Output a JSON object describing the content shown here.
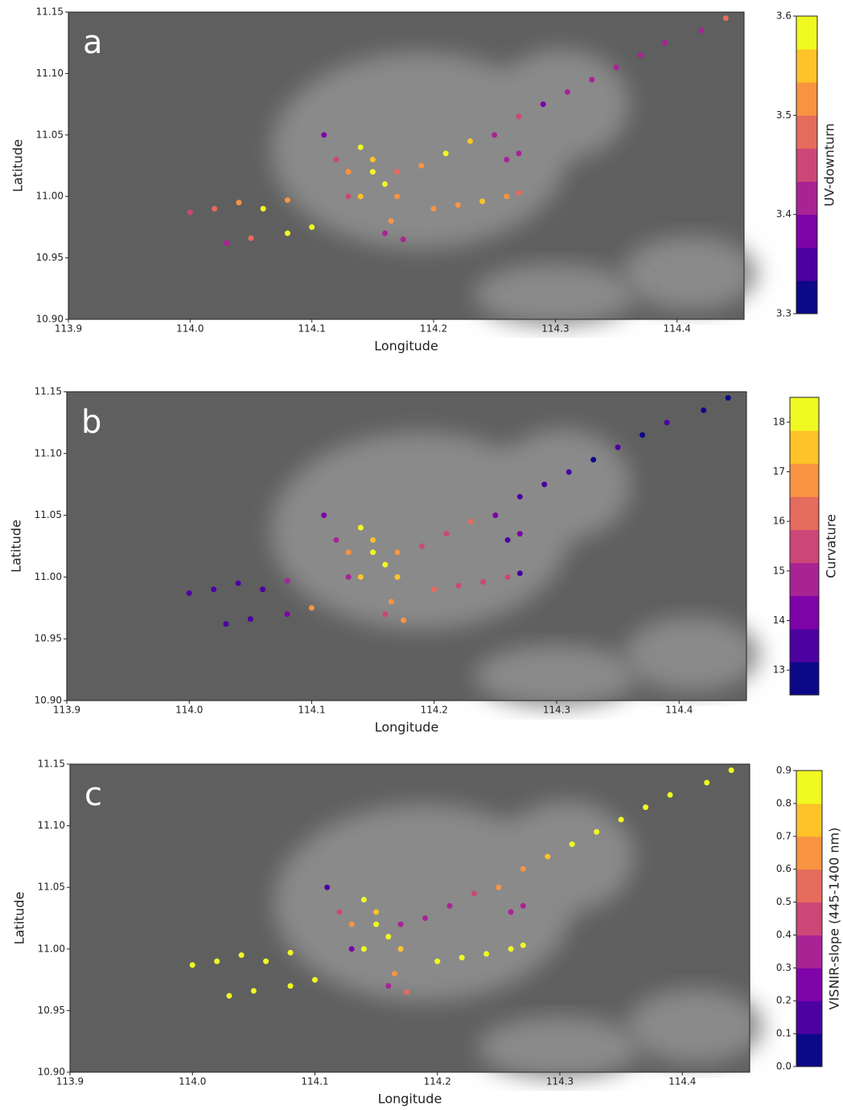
{
  "chart_data": [
    {
      "type": "scatter",
      "panel_label": "a",
      "xlabel": "Longitude",
      "ylabel": "Latitude",
      "xlim": [
        113.9,
        114.455
      ],
      "ylim": [
        10.9,
        11.15
      ],
      "xticks": [
        113.9,
        {
          "value": 114,
          "label": "114.0"
        },
        114.1,
        114.2,
        114.3,
        114.4
      ],
      "yticks": [
        {
          "value": 10.9,
          "label": "10.90"
        },
        10.95,
        {
          "value": 11,
          "label": "11.00"
        },
        11.05,
        {
          "value": 11.1,
          "label": "11.10"
        },
        11.15
      ],
      "x": [
        114.44,
        114.42,
        114.39,
        114.37,
        114.35,
        114.33,
        114.31,
        114.29,
        114.27,
        114.25,
        114.23,
        114.21,
        114.19,
        114.17,
        114.0,
        114.02,
        114.04,
        114.06,
        114.08,
        114.03,
        114.05,
        114.08,
        114.1,
        114.2,
        114.22,
        114.24,
        114.26,
        114.27,
        114.26,
        114.27,
        114.14,
        114.15,
        114.16,
        114.17,
        114.13,
        114.12,
        114.11,
        114.165,
        114.175,
        114.16,
        114.14,
        114.15,
        114.13
      ],
      "y": [
        11.145,
        11.135,
        11.125,
        11.115,
        11.105,
        11.095,
        11.085,
        11.075,
        11.065,
        11.05,
        11.045,
        11.035,
        11.025,
        11.02,
        10.987,
        10.99,
        10.995,
        10.99,
        10.997,
        10.962,
        10.966,
        10.97,
        10.975,
        10.99,
        10.993,
        10.996,
        11.0,
        11.003,
        11.03,
        11.035,
        11.04,
        11.03,
        11.01,
        11.0,
        11.02,
        11.03,
        11.05,
        10.98,
        10.965,
        10.97,
        11.0,
        11.02,
        11.0
      ],
      "values": [
        3.48,
        3.43,
        3.43,
        3.42,
        3.41,
        3.41,
        3.4,
        3.37,
        3.45,
        3.42,
        3.55,
        3.58,
        3.52,
        3.49,
        3.46,
        3.47,
        3.51,
        3.59,
        3.52,
        3.43,
        3.48,
        3.58,
        3.57,
        3.52,
        3.53,
        3.54,
        3.52,
        3.47,
        3.41,
        3.42,
        3.59,
        3.56,
        3.58,
        3.53,
        3.52,
        3.45,
        3.39,
        3.5,
        3.4,
        3.42,
        3.55,
        3.57,
        3.44
      ],
      "colorbar": {
        "label": "UV-downturn",
        "lim": [
          3.3,
          3.6
        ],
        "ticks": [
          3.3,
          3.4,
          3.5,
          3.6
        ],
        "colors": [
          "#0d0887",
          "#4c02a1",
          "#7e03a8",
          "#a92395",
          "#cc4778",
          "#e56b5d",
          "#f89441",
          "#fdc328",
          "#f0f921"
        ]
      }
    },
    {
      "type": "scatter",
      "panel_label": "b",
      "xlabel": "Longitude",
      "ylabel": "Latitude",
      "xlim": [
        113.9,
        114.455
      ],
      "ylim": [
        10.9,
        11.15
      ],
      "xticks": [
        113.9,
        {
          "value": 114,
          "label": "114.0"
        },
        114.1,
        114.2,
        114.3,
        114.4
      ],
      "yticks": [
        {
          "value": 10.9,
          "label": "10.90"
        },
        10.95,
        {
          "value": 11,
          "label": "11.00"
        },
        11.05,
        {
          "value": 11.1,
          "label": "11.10"
        },
        11.15
      ],
      "x": [
        114.44,
        114.42,
        114.39,
        114.37,
        114.35,
        114.33,
        114.31,
        114.29,
        114.27,
        114.25,
        114.23,
        114.21,
        114.19,
        114.17,
        114.0,
        114.02,
        114.04,
        114.06,
        114.08,
        114.03,
        114.05,
        114.08,
        114.1,
        114.2,
        114.22,
        114.24,
        114.26,
        114.27,
        114.26,
        114.27,
        114.14,
        114.15,
        114.16,
        114.17,
        114.13,
        114.12,
        114.11,
        114.165,
        114.175,
        114.16,
        114.14,
        114.15,
        114.13
      ],
      "y": [
        11.145,
        11.135,
        11.125,
        11.115,
        11.105,
        11.095,
        11.085,
        11.075,
        11.065,
        11.05,
        11.045,
        11.035,
        11.025,
        11.02,
        10.987,
        10.99,
        10.995,
        10.99,
        10.997,
        10.962,
        10.966,
        10.97,
        10.975,
        10.99,
        10.993,
        10.996,
        11.0,
        11.003,
        11.03,
        11.035,
        11.04,
        11.03,
        11.01,
        11.0,
        11.02,
        11.03,
        11.05,
        10.98,
        10.965,
        10.97,
        11.0,
        11.02,
        11.0
      ],
      "values": [
        13.1,
        13.1,
        13.2,
        13.1,
        13.2,
        13.1,
        13.3,
        13.2,
        13.4,
        14.2,
        16.1,
        15.4,
        15.8,
        16.6,
        13.2,
        13.2,
        13.3,
        13.2,
        15.0,
        13.3,
        13.2,
        14.0,
        16.9,
        16.3,
        15.5,
        15.6,
        15.8,
        13.5,
        13.6,
        14.0,
        18.1,
        17.8,
        18.2,
        17.3,
        16.9,
        14.5,
        14.2,
        16.8,
        17.1,
        15.6,
        17.6,
        18.0,
        14.8
      ],
      "colorbar": {
        "label": "Curvature",
        "lim": [
          12.5,
          18.5
        ],
        "ticks": [
          13,
          14,
          15,
          16,
          17,
          18
        ],
        "colors": [
          "#0d0887",
          "#4c02a1",
          "#7e03a8",
          "#a92395",
          "#cc4778",
          "#e56b5d",
          "#f89441",
          "#fdc328",
          "#f0f921"
        ]
      }
    },
    {
      "type": "scatter",
      "panel_label": "c",
      "xlabel": "Longitude",
      "ylabel": "Latitude",
      "xlim": [
        113.9,
        114.455
      ],
      "ylim": [
        10.9,
        11.15
      ],
      "xticks": [
        113.9,
        {
          "value": 114,
          "label": "114.0"
        },
        114.1,
        114.2,
        114.3,
        114.4
      ],
      "yticks": [
        {
          "value": 10.9,
          "label": "10.90"
        },
        10.95,
        {
          "value": 11,
          "label": "11.00"
        },
        11.05,
        {
          "value": 11.1,
          "label": "11.10"
        },
        11.15
      ],
      "x": [
        114.44,
        114.42,
        114.39,
        114.37,
        114.35,
        114.33,
        114.31,
        114.29,
        114.27,
        114.25,
        114.23,
        114.21,
        114.19,
        114.17,
        114.0,
        114.02,
        114.04,
        114.06,
        114.08,
        114.03,
        114.05,
        114.08,
        114.1,
        114.2,
        114.22,
        114.24,
        114.26,
        114.27,
        114.26,
        114.27,
        114.14,
        114.15,
        114.16,
        114.17,
        114.13,
        114.12,
        114.11,
        114.165,
        114.175,
        114.16,
        114.14,
        114.15,
        114.13
      ],
      "y": [
        11.145,
        11.135,
        11.125,
        11.115,
        11.105,
        11.095,
        11.085,
        11.075,
        11.065,
        11.05,
        11.045,
        11.035,
        11.025,
        11.02,
        10.987,
        10.99,
        10.995,
        10.99,
        10.997,
        10.962,
        10.966,
        10.97,
        10.975,
        10.99,
        10.993,
        10.996,
        11.0,
        11.003,
        11.03,
        11.035,
        11.04,
        11.03,
        11.01,
        11.0,
        11.02,
        11.03,
        11.05,
        10.98,
        10.965,
        10.97,
        11.0,
        11.02,
        11.0
      ],
      "values": [
        0.85,
        0.85,
        0.85,
        0.85,
        0.85,
        0.82,
        0.8,
        0.75,
        0.68,
        0.6,
        0.4,
        0.35,
        0.35,
        0.3,
        0.85,
        0.85,
        0.85,
        0.85,
        0.85,
        0.85,
        0.85,
        0.85,
        0.85,
        0.85,
        0.85,
        0.85,
        0.85,
        0.85,
        0.3,
        0.3,
        0.82,
        0.78,
        0.84,
        0.74,
        0.7,
        0.45,
        0.15,
        0.65,
        0.5,
        0.35,
        0.8,
        0.82,
        0.28
      ],
      "colorbar": {
        "label": "VISNIR-slope (445-1400 nm)",
        "lim": [
          0,
          0.9
        ],
        "ticks": [
          {
            "value": 0,
            "label": "0.0"
          },
          0.1,
          0.2,
          0.3,
          0.4,
          0.5,
          0.6,
          0.7,
          0.8,
          0.9
        ],
        "colors": [
          "#0d0887",
          "#4c02a1",
          "#7e03a8",
          "#a92395",
          "#cc4778",
          "#e56b5d",
          "#f89441",
          "#fdc328",
          "#f0f921"
        ]
      }
    }
  ]
}
